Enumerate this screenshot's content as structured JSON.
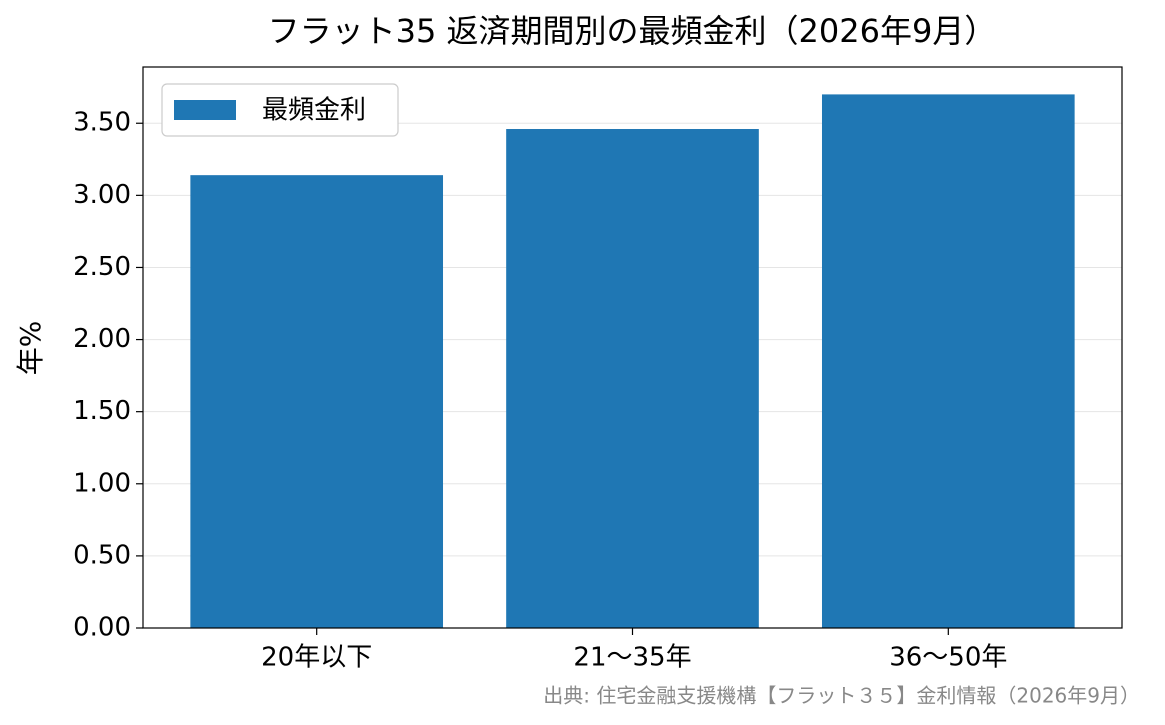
{
  "chart_data": {
    "type": "bar",
    "title": "フラット35 返済期間別の最頻金利（2026年9月）",
    "y_label": "年%",
    "categories": [
      "20年以下",
      "21〜35年",
      "36〜50年"
    ],
    "series": [
      {
        "name": "最頻金利",
        "color": "#1f77b4",
        "values": [
          3.14,
          3.46,
          3.7
        ]
      }
    ],
    "ylim": [
      0,
      3.89
    ],
    "yticks": [
      {
        "value": 0,
        "label": "0.00"
      },
      {
        "value": 0.5,
        "label": "0.50"
      },
      {
        "value": 1,
        "label": "1.00"
      },
      {
        "value": 1.5,
        "label": "1.50"
      },
      {
        "value": 2,
        "label": "2.00"
      },
      {
        "value": 2.5,
        "label": "2.50"
      },
      {
        "value": 3,
        "label": "3.00"
      },
      {
        "value": 3.5,
        "label": "3.50"
      }
    ],
    "grid": true,
    "legend": "upper-left",
    "source": "出典: 住宅金融支援機構【フラット３５】金利情報（2026年9月）"
  }
}
